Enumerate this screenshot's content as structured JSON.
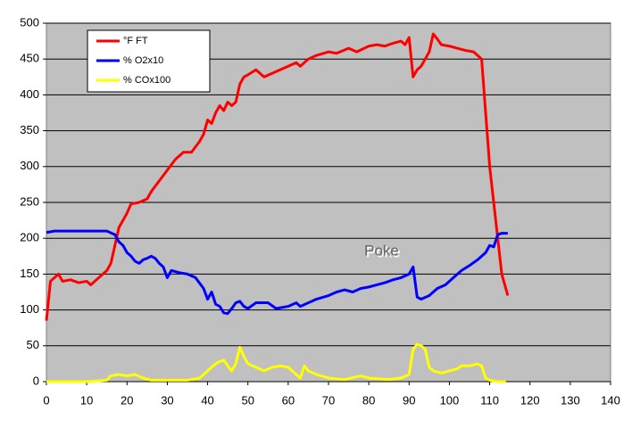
{
  "chart_data": {
    "type": "line",
    "xlim": [
      0,
      140
    ],
    "xticks": [
      0,
      10,
      20,
      30,
      40,
      50,
      60,
      70,
      80,
      90,
      100,
      110,
      120,
      130,
      140
    ],
    "ylim": [
      0,
      500
    ],
    "yticks": [
      0,
      50,
      100,
      150,
      200,
      250,
      300,
      350,
      400,
      450,
      500
    ],
    "grid": true,
    "legend": "top-left",
    "annotations": [
      "Poke"
    ],
    "series": [
      {
        "name": "°F FT",
        "color": "#ff0000",
        "x": [
          0,
          1,
          3,
          4,
          6,
          8,
          10,
          11,
          12,
          14,
          15,
          16,
          17,
          18,
          19,
          20,
          21,
          23,
          25,
          26,
          28,
          30,
          32,
          34,
          36,
          38,
          39,
          40,
          41,
          42,
          43,
          44,
          45,
          46,
          47,
          48,
          49,
          50,
          52,
          54,
          56,
          58,
          60,
          62,
          63,
          65,
          67,
          70,
          72,
          75,
          77,
          80,
          82,
          84,
          86,
          88,
          89,
          90,
          91,
          92,
          93,
          94,
          95,
          96,
          97,
          98,
          100,
          102,
          104,
          106,
          107,
          108,
          109,
          110,
          111,
          112,
          113,
          114,
          114.5
        ],
        "values": [
          85,
          140,
          150,
          140,
          142,
          138,
          140,
          135,
          140,
          150,
          155,
          165,
          190,
          215,
          225,
          235,
          248,
          250,
          255,
          265,
          280,
          295,
          310,
          320,
          320,
          335,
          345,
          365,
          360,
          375,
          385,
          378,
          390,
          385,
          390,
          415,
          425,
          428,
          435,
          425,
          430,
          435,
          440,
          445,
          440,
          450,
          455,
          460,
          458,
          465,
          460,
          468,
          470,
          468,
          472,
          475,
          470,
          480,
          425,
          435,
          440,
          450,
          460,
          485,
          478,
          470,
          468,
          465,
          462,
          460,
          455,
          450,
          375,
          300,
          250,
          200,
          150,
          130,
          120
        ]
      },
      {
        "name": "% O2x10",
        "color": "#0000ff",
        "x": [
          0,
          2,
          10,
          15,
          17,
          18,
          19,
          20,
          21,
          22,
          23,
          24,
          25,
          26,
          27,
          28,
          29,
          30,
          31,
          33,
          35,
          37,
          39,
          40,
          41,
          42,
          43,
          44,
          45,
          46,
          47,
          48,
          49,
          50,
          52,
          55,
          57,
          60,
          62,
          63,
          65,
          67,
          70,
          72,
          74,
          76,
          78,
          80,
          82,
          84,
          86,
          88,
          90,
          91,
          92,
          93,
          95,
          97,
          99,
          101,
          103,
          105,
          107,
          109,
          110,
          111,
          112,
          113,
          114.5
        ],
        "values": [
          208,
          210,
          210,
          210,
          205,
          195,
          190,
          180,
          175,
          168,
          165,
          170,
          172,
          175,
          172,
          165,
          160,
          145,
          155,
          152,
          150,
          145,
          130,
          115,
          125,
          108,
          105,
          96,
          95,
          102,
          110,
          112,
          105,
          102,
          110,
          110,
          102,
          105,
          110,
          105,
          110,
          115,
          120,
          125,
          128,
          125,
          130,
          132,
          135,
          138,
          142,
          145,
          150,
          160,
          118,
          115,
          120,
          130,
          135,
          145,
          155,
          162,
          170,
          180,
          190,
          188,
          205,
          207,
          207
        ]
      },
      {
        "name": "% COx100",
        "color": "#ffff00",
        "x": [
          0,
          10,
          15,
          16,
          18,
          20,
          22,
          24,
          26,
          30,
          35,
          38,
          40,
          41,
          42,
          43,
          44,
          45,
          46,
          47,
          48,
          49,
          50,
          52,
          54,
          56,
          58,
          60,
          62,
          63,
          64,
          65,
          67,
          70,
          74,
          78,
          80,
          85,
          88,
          90,
          91,
          92,
          93,
          94,
          95,
          96,
          98,
          100,
          102,
          103,
          105,
          107,
          108,
          109,
          110,
          112,
          114
        ],
        "values": [
          0,
          0,
          2,
          8,
          10,
          8,
          10,
          5,
          2,
          2,
          2,
          5,
          15,
          20,
          25,
          28,
          30,
          22,
          15,
          25,
          48,
          35,
          25,
          20,
          15,
          20,
          22,
          20,
          10,
          5,
          22,
          15,
          10,
          5,
          3,
          8,
          5,
          3,
          5,
          10,
          45,
          52,
          50,
          45,
          20,
          15,
          12,
          15,
          18,
          22,
          22,
          25,
          22,
          5,
          2,
          0,
          0
        ]
      }
    ]
  }
}
